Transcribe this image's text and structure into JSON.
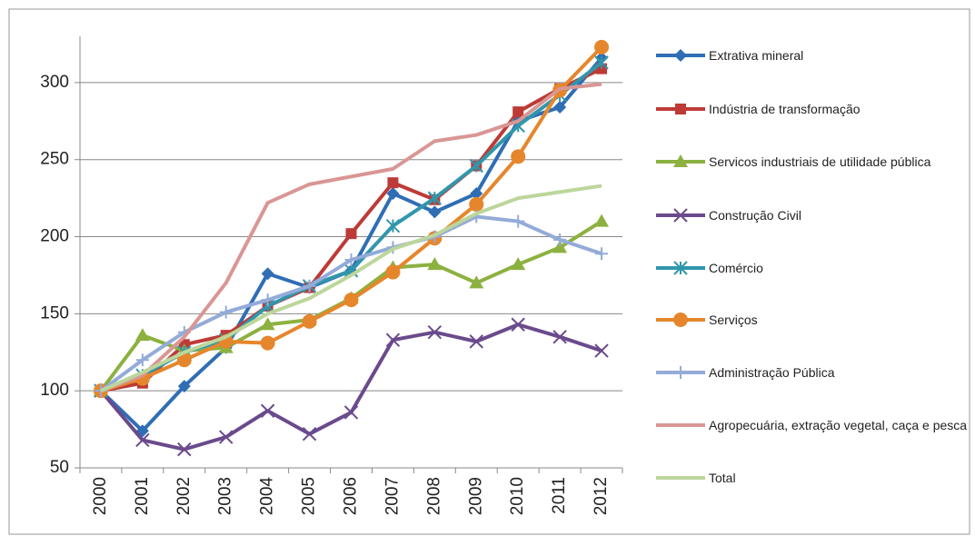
{
  "chart_data": {
    "type": "line",
    "categories": [
      "2000",
      "2001",
      "2002",
      "2003",
      "2004",
      "2005",
      "2006",
      "2007",
      "2008",
      "2009",
      "2010",
      "2011",
      "2012"
    ],
    "ylim": [
      50,
      330
    ],
    "yticks": [
      50,
      100,
      150,
      200,
      250,
      300
    ],
    "grid": true,
    "series": [
      {
        "name": "Extrativa mineral",
        "color": "#2f6eb5",
        "marker": "diamond",
        "values": [
          100,
          74,
          103,
          128,
          176,
          167,
          178,
          228,
          216,
          228,
          275,
          284,
          316
        ]
      },
      {
        "name": "Indústria de transformação",
        "color": "#be3a36",
        "marker": "square",
        "values": [
          100,
          105,
          130,
          136,
          155,
          167,
          202,
          235,
          224,
          246,
          281,
          296,
          309
        ]
      },
      {
        "name": "Servicos industriais de utilidade pública",
        "color": "#8cb140",
        "marker": "triangle",
        "values": [
          100,
          136,
          126,
          128,
          143,
          146,
          160,
          180,
          182,
          170,
          182,
          193,
          210
        ]
      },
      {
        "name": "Construção Civil",
        "color": "#6a4a8c",
        "marker": "x",
        "values": [
          100,
          68,
          62,
          70,
          87,
          72,
          86,
          133,
          138,
          132,
          143,
          135,
          126
        ]
      },
      {
        "name": "Comércio",
        "color": "#3196ab",
        "marker": "star",
        "values": [
          100,
          110,
          125,
          133,
          155,
          168,
          178,
          207,
          225,
          246,
          272,
          292,
          313
        ]
      },
      {
        "name": "Serviços",
        "color": "#e6862c",
        "marker": "circle",
        "values": [
          100,
          108,
          120,
          132,
          131,
          145,
          159,
          177,
          199,
          221,
          252,
          295,
          323
        ]
      },
      {
        "name": "Administração Pública",
        "color": "#93abd8",
        "marker": "plus",
        "values": [
          100,
          120,
          138,
          151,
          159,
          168,
          185,
          193,
          200,
          213,
          210,
          198,
          189
        ]
      },
      {
        "name": "Agropecuária, extração vegetal, caça e pesca",
        "color": "#d99694",
        "marker": "none",
        "values": [
          100,
          110,
          135,
          170,
          222,
          234,
          239,
          244,
          262,
          266,
          275,
          296,
          299
        ]
      },
      {
        "name": "Total",
        "color": "#bcd69b",
        "marker": "none",
        "values": [
          100,
          112,
          125,
          135,
          150,
          160,
          175,
          192,
          201,
          215,
          225,
          229,
          233
        ]
      }
    ]
  }
}
